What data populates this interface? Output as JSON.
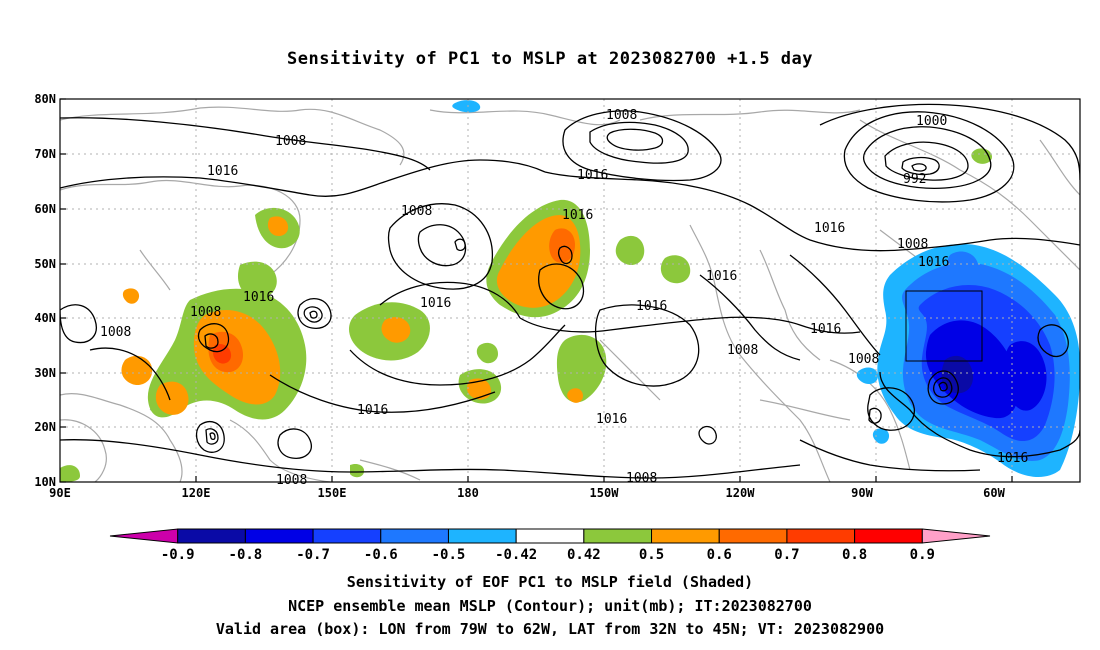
{
  "title": "Sensitivity of PC1 to MSLP at 2023082700 +1.5 day",
  "lat_labels": [
    "80N",
    "70N",
    "60N",
    "50N",
    "40N",
    "30N",
    "20N",
    "10N"
  ],
  "lon_labels": [
    "90E",
    "120E",
    "150E",
    "180",
    "150W",
    "120W",
    "90W",
    "60W"
  ],
  "contour_labels": [
    "1008",
    "1016",
    "1008",
    "1016",
    "1008",
    "1016",
    "1000",
    "992",
    "1016",
    "1008",
    "1016",
    "1016",
    "1008",
    "1016",
    "1016",
    "1008",
    "1016",
    "1016",
    "1016",
    "1008",
    "1008",
    "1016",
    "1016",
    "1008",
    "1008",
    "1016"
  ],
  "colorbar": {
    "colors": [
      "#cc00aa",
      "#0a0aa6",
      "#0000e6",
      "#1540ff",
      "#1e78ff",
      "#1eb4ff",
      "#ffffff",
      "#8cc83c",
      "#ff9a00",
      "#ff6a00",
      "#ff3c00",
      "#ff0000",
      "#ffa0c8"
    ],
    "labels": [
      "-0.9",
      "-0.8",
      "-0.7",
      "-0.6",
      "-0.5",
      "-0.42",
      "0.42",
      "0.5",
      "0.6",
      "0.7",
      "0.8",
      "0.9"
    ]
  },
  "captions": [
    "Sensitivity of EOF PC1 to MSLP field (Shaded)",
    "NCEP ensemble mean MSLP (Contour); unit(mb); IT:2023082700",
    "Valid area (box): LON from 79W to 62W, LAT from 32N to 45N; VT: 2023082900"
  ]
}
